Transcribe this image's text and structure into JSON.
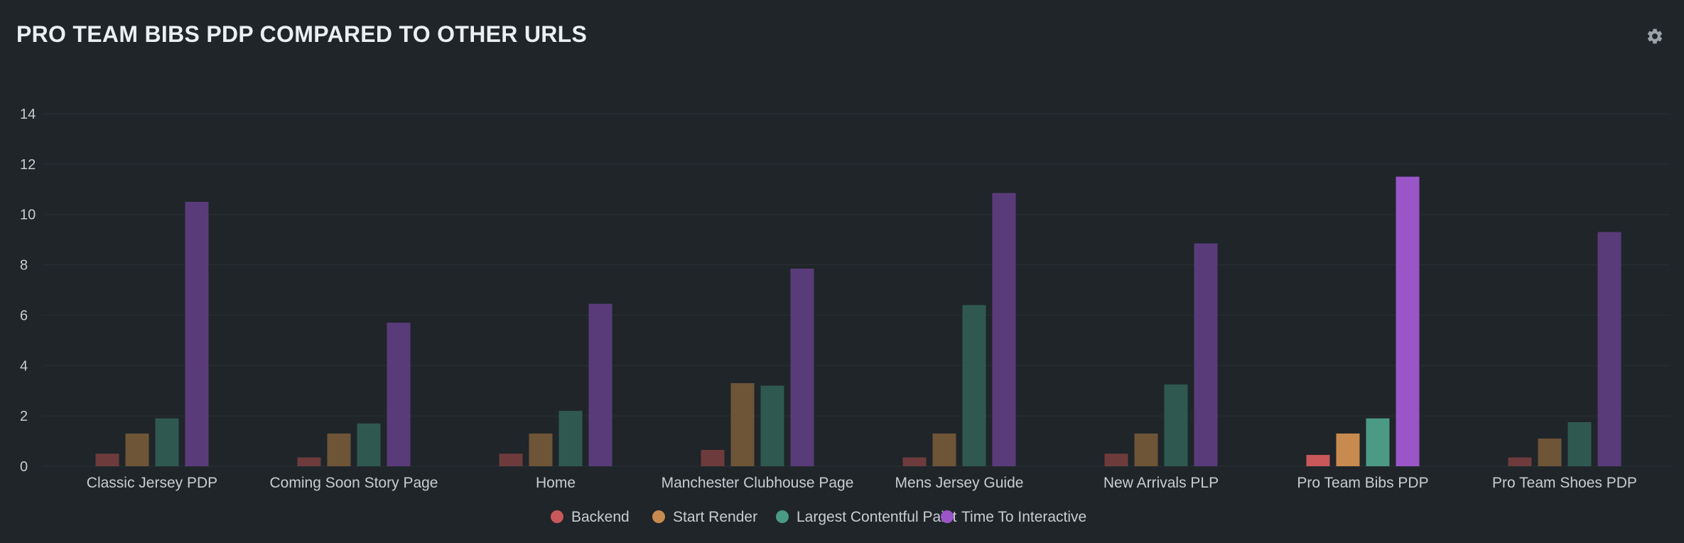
{
  "header": {
    "title": "PRO TEAM BIBS PDP COMPARED TO OTHER URLS",
    "settings_icon": "gear-icon"
  },
  "colors": {
    "background": "#1f2529",
    "gridline": "#2a3136",
    "text": "#c7cdd1",
    "series_dim": [
      "#6e3b3d",
      "#6e5538",
      "#2f5950",
      "#5a3b7a"
    ],
    "series_bright": [
      "#c8585a",
      "#c98a4f",
      "#4a9a84",
      "#9a55c7"
    ],
    "legend": [
      "#c8585a",
      "#c98a4f",
      "#4a9a84",
      "#9a55c7"
    ]
  },
  "chart_data": {
    "type": "bar",
    "title": "PRO TEAM BIBS PDP COMPARED TO OTHER URLS",
    "xlabel": "",
    "ylabel": "",
    "ylim": [
      0,
      14
    ],
    "yticks": [
      0,
      2,
      4,
      6,
      8,
      10,
      12,
      14
    ],
    "grid": true,
    "legend_position": "bottom-center",
    "highlight_category": "Pro Team Bibs PDP",
    "categories": [
      "Classic Jersey PDP",
      "Coming Soon Story Page",
      "Home",
      "Manchester Clubhouse Page",
      "Mens Jersey Guide",
      "New Arrivals PLP",
      "Pro Team Bibs PDP",
      "Pro Team Shoes PDP"
    ],
    "series": [
      {
        "name": "Backend",
        "values": [
          0.5,
          0.35,
          0.5,
          0.65,
          0.35,
          0.5,
          0.45,
          0.35
        ]
      },
      {
        "name": "Start Render",
        "values": [
          1.3,
          1.3,
          1.3,
          3.3,
          1.3,
          1.3,
          1.3,
          1.1
        ]
      },
      {
        "name": "Largest Contentful Paint",
        "values": [
          1.9,
          1.7,
          2.2,
          3.2,
          6.4,
          3.25,
          1.9,
          1.75
        ]
      },
      {
        "name": "Time To Interactive",
        "values": [
          10.5,
          5.7,
          6.45,
          7.85,
          10.85,
          8.85,
          11.5,
          9.3
        ]
      }
    ]
  }
}
